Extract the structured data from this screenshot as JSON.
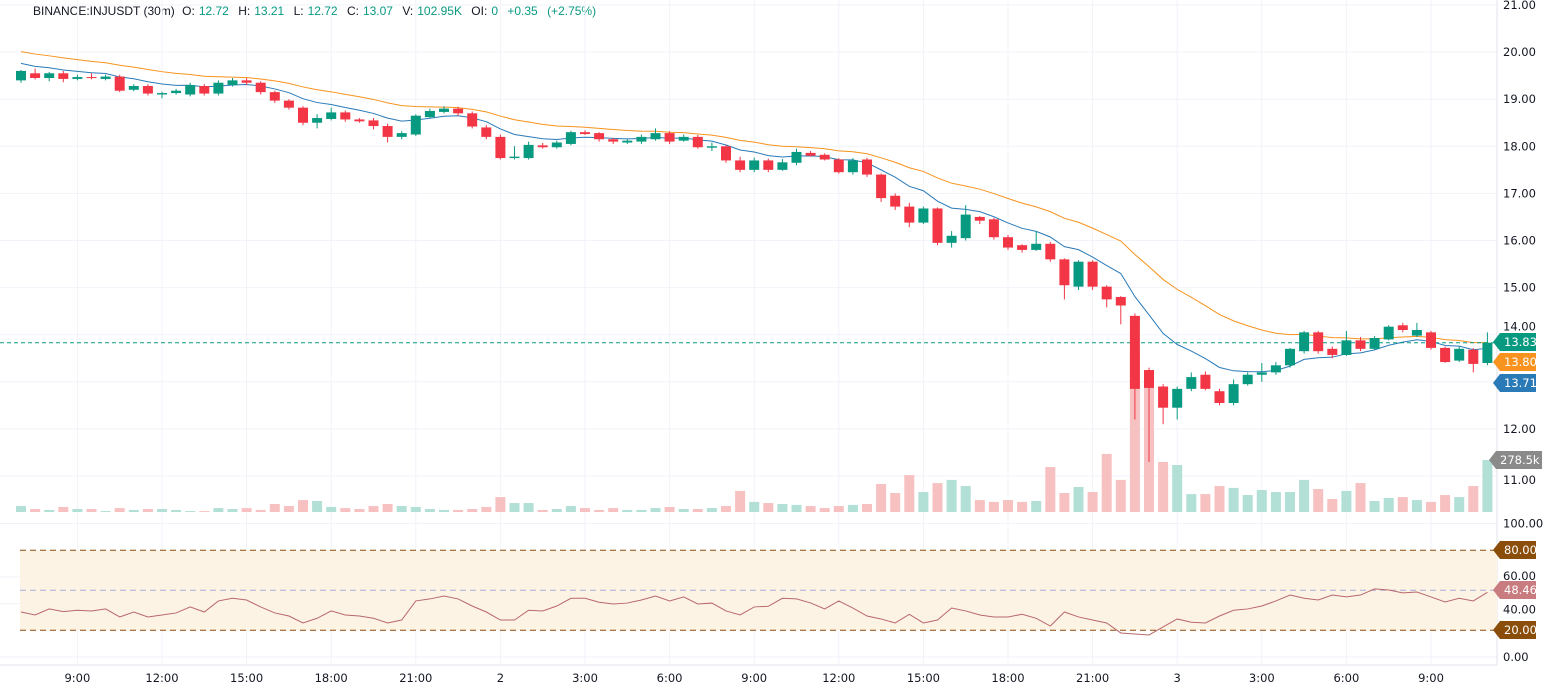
{
  "legend": {
    "symbol": "BINANCE:INJUSDT (30m)",
    "o_label": "O:",
    "o": "12.72",
    "h_label": "H:",
    "h": "13.21",
    "l_label": "L:",
    "l": "12.72",
    "c_label": "C:",
    "c": "13.07",
    "v_label": "V:",
    "v": "102.95K",
    "oi_label": "OI:",
    "oi": "0",
    "change": "+0.35",
    "change_pct": "(+2.75%)"
  },
  "colors": {
    "up": "#089981",
    "down": "#f23645",
    "up_volume": "#b2dfd6",
    "down_volume": "#f7c1c1",
    "ma_fast": "#2a7ab8",
    "ma_slow": "#f7931e",
    "rsi_line": "#b8686b",
    "rsi_band": "#fdf3e4",
    "rsi_levels": "#8b4d0a",
    "rsi_mid": "#a9a9d9"
  },
  "chart_data": {
    "type": "candlestick",
    "interval": "30m",
    "price_axis_labels": [
      "21.00",
      "20.00",
      "19.00",
      "18.00",
      "17.00",
      "16.00",
      "15.00",
      "14.00",
      "12.00",
      "11.00"
    ],
    "price_axis_values": [
      21,
      20,
      19,
      18,
      17,
      16,
      15,
      14,
      12,
      11
    ],
    "rsi_axis_labels": [
      "100.00",
      "60.00",
      "40.00",
      "0.00"
    ],
    "rsi_axis_values": [
      100,
      60,
      40,
      0
    ],
    "time_labels": [
      "9:00",
      "12:00",
      "15:00",
      "18:00",
      "21:00",
      "2",
      "3:00",
      "6:00",
      "9:00",
      "12:00",
      "15:00",
      "18:00",
      "21:00",
      "3",
      "3:00",
      "6:00",
      "9:00"
    ],
    "grid": true,
    "candles_ohlc": [
      [
        19.4,
        19.62,
        19.35,
        19.6
      ],
      [
        19.55,
        19.65,
        19.42,
        19.45
      ],
      [
        19.45,
        19.58,
        19.38,
        19.55
      ],
      [
        19.55,
        19.6,
        19.36,
        19.43
      ],
      [
        19.43,
        19.52,
        19.4,
        19.47
      ],
      [
        19.47,
        19.55,
        19.42,
        19.45
      ],
      [
        19.43,
        19.52,
        19.4,
        19.48
      ],
      [
        19.48,
        19.52,
        19.15,
        19.18
      ],
      [
        19.2,
        19.32,
        19.17,
        19.28
      ],
      [
        19.28,
        19.32,
        19.08,
        19.12
      ],
      [
        19.1,
        19.16,
        19.02,
        19.13
      ],
      [
        19.13,
        19.22,
        19.1,
        19.18
      ],
      [
        19.1,
        19.35,
        19.06,
        19.3
      ],
      [
        19.28,
        19.32,
        19.08,
        19.12
      ],
      [
        19.12,
        19.4,
        19.08,
        19.35
      ],
      [
        19.3,
        19.45,
        19.27,
        19.4
      ],
      [
        19.4,
        19.45,
        19.3,
        19.35
      ],
      [
        19.35,
        19.38,
        19.1,
        19.15
      ],
      [
        19.15,
        19.18,
        18.92,
        18.97
      ],
      [
        18.97,
        19.0,
        18.78,
        18.82
      ],
      [
        18.82,
        18.85,
        18.45,
        18.5
      ],
      [
        18.5,
        18.68,
        18.38,
        18.6
      ],
      [
        18.58,
        18.82,
        18.55,
        18.72
      ],
      [
        18.72,
        18.76,
        18.52,
        18.57
      ],
      [
        18.57,
        18.6,
        18.5,
        18.53
      ],
      [
        18.55,
        18.6,
        18.36,
        18.43
      ],
      [
        18.43,
        18.48,
        18.08,
        18.2
      ],
      [
        18.2,
        18.32,
        18.15,
        18.28
      ],
      [
        18.25,
        18.68,
        18.22,
        18.65
      ],
      [
        18.62,
        18.8,
        18.6,
        18.75
      ],
      [
        18.73,
        18.85,
        18.7,
        18.8
      ],
      [
        18.8,
        18.84,
        18.65,
        18.7
      ],
      [
        18.7,
        18.74,
        18.38,
        18.42
      ],
      [
        18.4,
        18.45,
        18.15,
        18.2
      ],
      [
        18.2,
        18.25,
        17.72,
        17.75
      ],
      [
        17.75,
        18.0,
        17.72,
        17.78
      ],
      [
        17.75,
        18.1,
        17.72,
        18.03
      ],
      [
        18.02,
        18.07,
        17.95,
        17.98
      ],
      [
        17.98,
        18.12,
        17.95,
        18.08
      ],
      [
        18.05,
        18.33,
        18.02,
        18.3
      ],
      [
        18.3,
        18.34,
        18.24,
        18.26
      ],
      [
        18.28,
        18.3,
        18.1,
        18.15
      ],
      [
        18.15,
        18.18,
        18.05,
        18.1
      ],
      [
        18.08,
        18.16,
        18.05,
        18.12
      ],
      [
        18.1,
        18.25,
        18.05,
        18.2
      ],
      [
        18.15,
        18.38,
        18.12,
        18.28
      ],
      [
        18.28,
        18.32,
        18.05,
        18.1
      ],
      [
        18.12,
        18.25,
        18.1,
        18.2
      ],
      [
        18.2,
        18.24,
        17.95,
        17.98
      ],
      [
        17.97,
        18.08,
        17.9,
        18.0
      ],
      [
        18.0,
        18.02,
        17.65,
        17.7
      ],
      [
        17.7,
        17.78,
        17.45,
        17.5
      ],
      [
        17.5,
        17.76,
        17.45,
        17.7
      ],
      [
        17.7,
        17.74,
        17.45,
        17.5
      ],
      [
        17.5,
        17.73,
        17.48,
        17.66
      ],
      [
        17.65,
        17.95,
        17.6,
        17.88
      ],
      [
        17.86,
        17.9,
        17.78,
        17.8
      ],
      [
        17.82,
        17.85,
        17.7,
        17.72
      ],
      [
        17.72,
        17.75,
        17.42,
        17.45
      ],
      [
        17.45,
        17.75,
        17.4,
        17.7
      ],
      [
        17.72,
        17.76,
        17.35,
        17.4
      ],
      [
        17.4,
        17.42,
        16.82,
        16.9
      ],
      [
        16.95,
        17.0,
        16.65,
        16.72
      ],
      [
        16.72,
        16.8,
        16.28,
        16.38
      ],
      [
        16.38,
        16.72,
        16.35,
        16.68
      ],
      [
        16.68,
        16.7,
        15.9,
        15.95
      ],
      [
        15.95,
        16.2,
        15.85,
        16.1
      ],
      [
        16.05,
        16.75,
        16.0,
        16.55
      ],
      [
        16.5,
        16.52,
        16.35,
        16.42
      ],
      [
        16.45,
        16.48,
        16.02,
        16.07
      ],
      [
        16.07,
        16.12,
        15.8,
        15.85
      ],
      [
        15.9,
        15.92,
        15.74,
        15.8
      ],
      [
        15.8,
        16.2,
        15.78,
        15.93
      ],
      [
        15.93,
        15.97,
        15.55,
        15.6
      ],
      [
        15.6,
        15.62,
        14.75,
        15.05
      ],
      [
        15.02,
        15.58,
        14.95,
        15.55
      ],
      [
        15.55,
        15.58,
        14.95,
        15.02
      ],
      [
        15.02,
        15.05,
        14.58,
        14.75
      ],
      [
        14.8,
        14.82,
        14.22,
        14.62
      ],
      [
        14.4,
        14.45,
        12.2,
        12.85
      ],
      [
        13.25,
        13.3,
        11.3,
        12.87
      ],
      [
        12.9,
        12.95,
        12.1,
        12.45
      ],
      [
        12.45,
        12.9,
        12.2,
        12.85
      ],
      [
        12.85,
        13.2,
        12.8,
        13.1
      ],
      [
        13.15,
        13.22,
        12.82,
        12.85
      ],
      [
        12.8,
        12.85,
        12.5,
        12.55
      ],
      [
        12.55,
        13.05,
        12.5,
        12.95
      ],
      [
        12.95,
        13.2,
        12.92,
        13.15
      ],
      [
        13.15,
        13.4,
        13.0,
        13.2
      ],
      [
        13.2,
        13.42,
        13.15,
        13.35
      ],
      [
        13.35,
        13.72,
        13.3,
        13.7
      ],
      [
        13.65,
        14.08,
        13.6,
        14.05
      ],
      [
        14.05,
        14.08,
        13.6,
        13.65
      ],
      [
        13.7,
        13.75,
        13.5,
        13.57
      ],
      [
        13.57,
        14.08,
        13.55,
        13.88
      ],
      [
        13.88,
        13.95,
        13.65,
        13.7
      ],
      [
        13.7,
        13.97,
        13.68,
        13.93
      ],
      [
        13.9,
        14.2,
        13.88,
        14.17
      ],
      [
        14.2,
        14.25,
        14.05,
        14.1
      ],
      [
        13.98,
        14.25,
        13.95,
        14.1
      ],
      [
        14.05,
        14.08,
        13.68,
        13.72
      ],
      [
        13.72,
        13.75,
        13.4,
        13.42
      ],
      [
        13.45,
        13.75,
        13.42,
        13.7
      ],
      [
        13.68,
        13.72,
        13.2,
        13.38
      ],
      [
        13.4,
        14.05,
        13.35,
        13.83
      ]
    ],
    "volume_k": [
      32,
      16,
      11,
      27,
      16,
      16,
      5,
      21,
      11,
      16,
      16,
      11,
      5,
      5,
      21,
      16,
      21,
      11,
      43,
      32,
      64,
      59,
      27,
      21,
      16,
      32,
      43,
      32,
      27,
      16,
      11,
      11,
      16,
      27,
      80,
      48,
      48,
      11,
      16,
      32,
      21,
      11,
      21,
      11,
      11,
      21,
      27,
      16,
      16,
      21,
      32,
      113,
      54,
      48,
      43,
      38,
      32,
      21,
      32,
      38,
      43,
      150,
      102,
      198,
      107,
      155,
      172,
      139,
      64,
      54,
      64,
      54,
      59,
      241,
      102,
      134,
      107,
      311,
      172,
      858,
      761,
      268,
      252,
      96,
      96,
      139,
      129,
      91,
      118,
      107,
      107,
      172,
      123,
      70,
      113,
      155,
      59,
      75,
      80,
      64,
      54,
      91,
      80,
      139,
      278.5
    ],
    "rsi": [
      33.7,
      31.5,
      36,
      34,
      35,
      34.5,
      36,
      30,
      33.7,
      30,
      31.5,
      33,
      37.5,
      33.7,
      42,
      44,
      42.7,
      37.5,
      33,
      30.7,
      25.5,
      29,
      34.5,
      31.5,
      30.7,
      29,
      25.5,
      27.7,
      42,
      43.5,
      45.7,
      43.5,
      38.2,
      33.7,
      27.7,
      27.7,
      35,
      34.5,
      38.2,
      44,
      44,
      41,
      39.7,
      40.4,
      42.7,
      45.7,
      42,
      45,
      39.7,
      40.4,
      34.5,
      31.5,
      37.5,
      38,
      44,
      43.5,
      40.5,
      36,
      42,
      36.7,
      30.7,
      28.5,
      25.5,
      32,
      25.5,
      27.7,
      36.7,
      34.5,
      31.5,
      30,
      30,
      32,
      29,
      23.2,
      33.7,
      30,
      27.7,
      25.5,
      18,
      17.2,
      16.5,
      22.5,
      28.5,
      26,
      25.5,
      30.7,
      35,
      36,
      38.2,
      42,
      46.4,
      44,
      42.7,
      46.4,
      45,
      46.4,
      51,
      50.2,
      48,
      48.7,
      45,
      41.2,
      44,
      42,
      48.46
    ],
    "rsi_levels": [
      80,
      50,
      20
    ]
  },
  "tags": {
    "last_price": "13.83",
    "ma_slow": "13.80",
    "ma_fast": "13.71",
    "volume": "278.5k",
    "rsi": "48.46",
    "rsi_upper": "80.00",
    "rsi_lower": "20.00"
  }
}
